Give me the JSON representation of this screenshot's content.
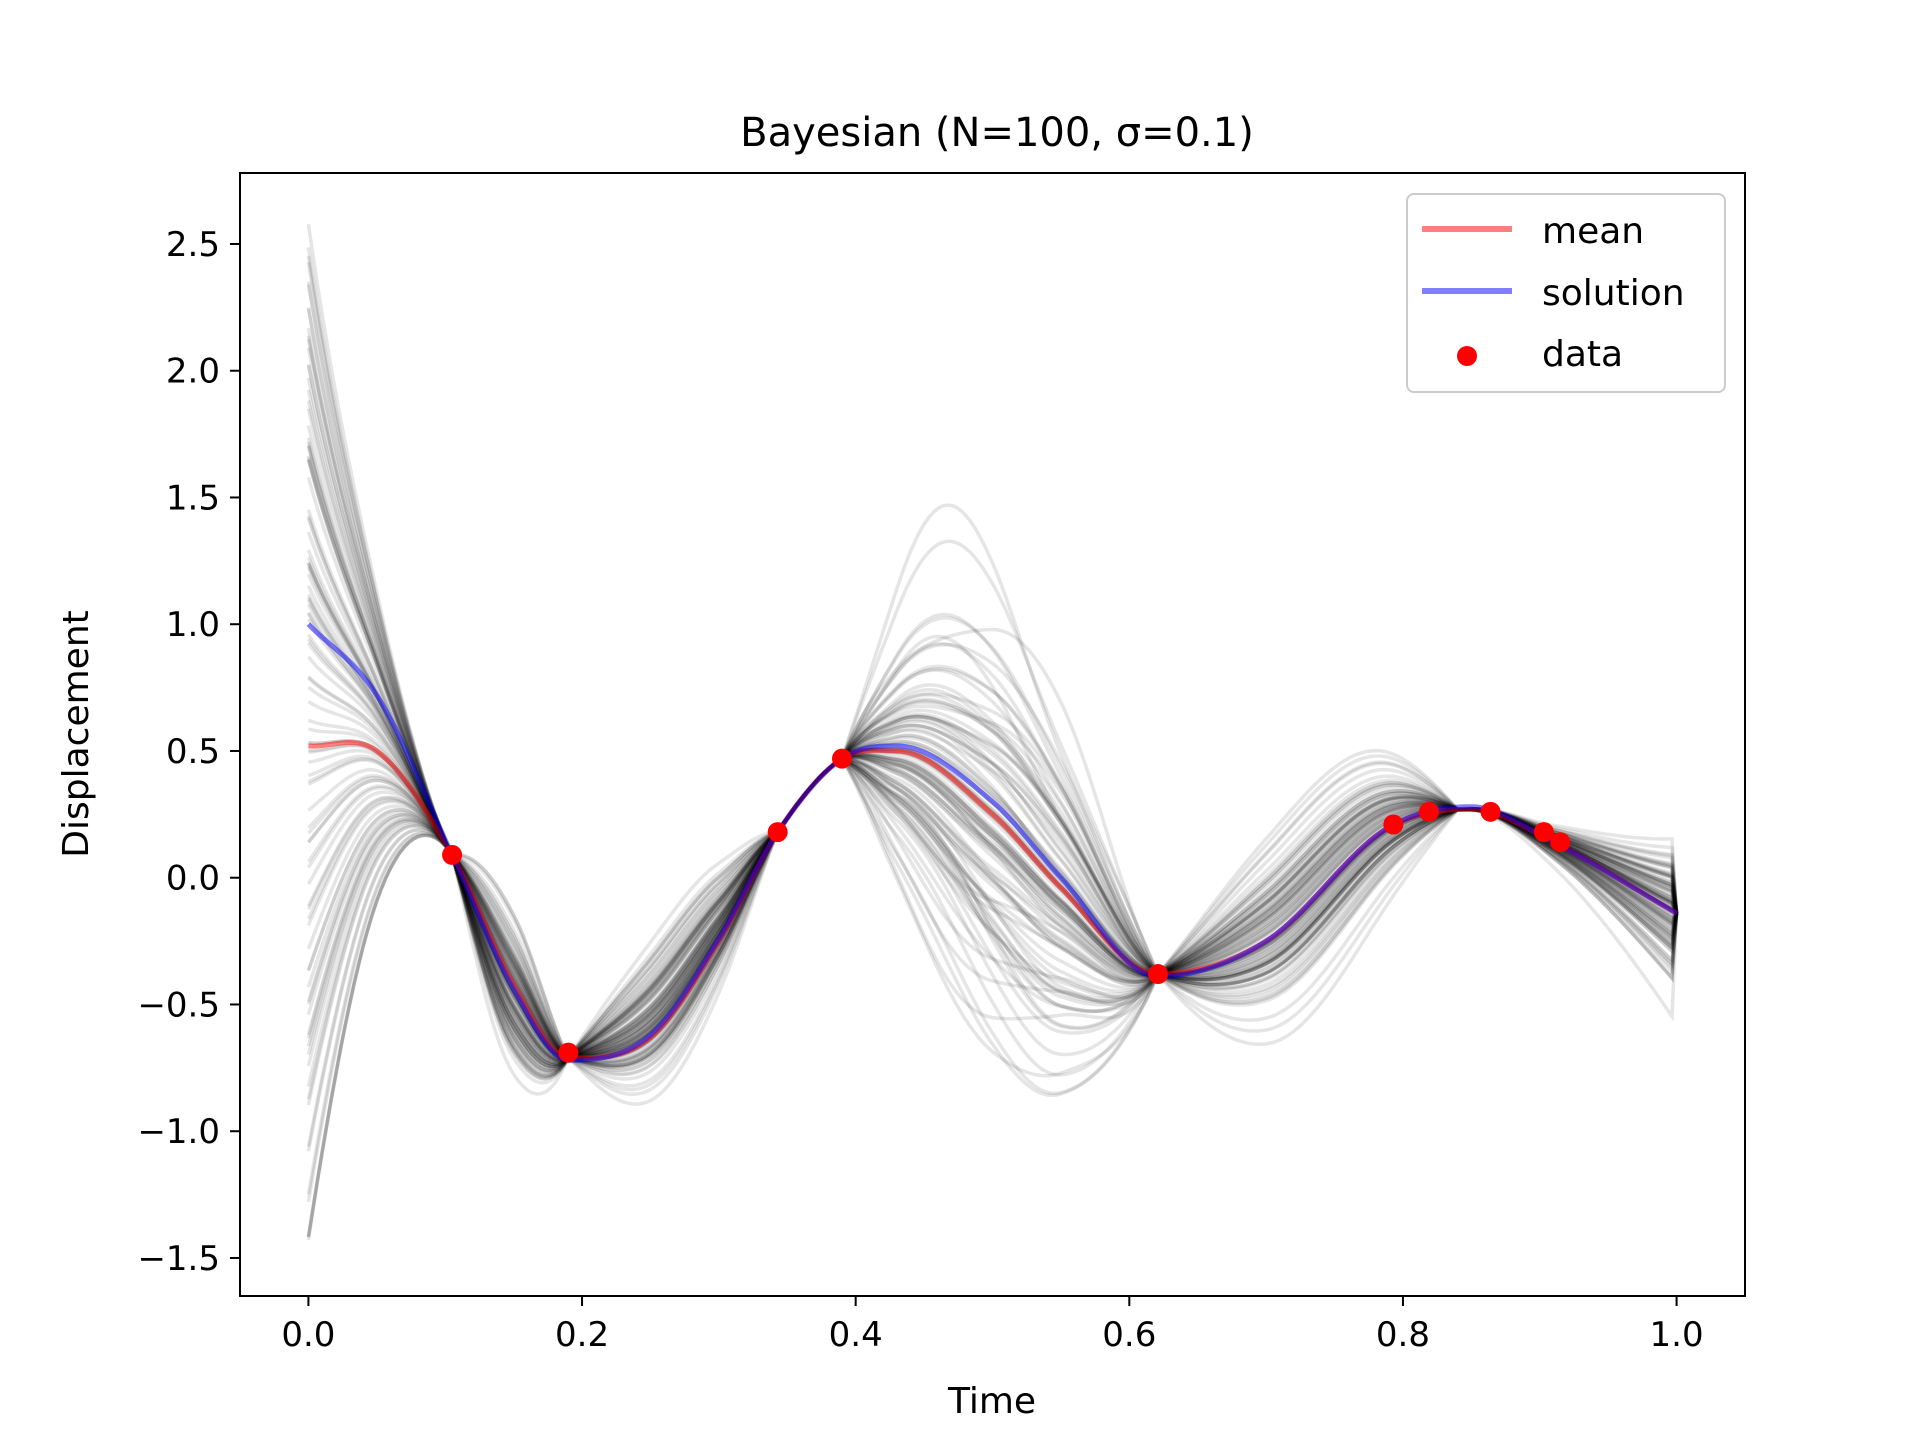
{
  "chart_data": {
    "type": "line",
    "title": "Bayesian (N=100, σ=0.1)",
    "xlabel": "Time",
    "ylabel": "Displacement",
    "xlim": [
      -0.05,
      1.05
    ],
    "ylim": [
      -1.65,
      2.78
    ],
    "x_ticks": [
      0.0,
      0.2,
      0.4,
      0.6,
      0.8,
      1.0
    ],
    "x_tick_labels": [
      "0.0",
      "0.2",
      "0.4",
      "0.6",
      "0.8",
      "1.0"
    ],
    "y_ticks": [
      -1.5,
      -1.0,
      -0.5,
      0.0,
      0.5,
      1.0,
      1.5,
      2.0,
      2.5
    ],
    "y_tick_labels": [
      "−1.5",
      "−1.0",
      "−0.5",
      "0.0",
      "0.5",
      "1.0",
      "1.5",
      "2.0",
      "2.5"
    ],
    "grid": false,
    "legend_position": "top-right",
    "series": [
      {
        "name": "mean",
        "color": "#ff0000",
        "x": [
          0.0,
          0.05,
          0.105,
          0.15,
          0.19,
          0.25,
          0.3,
          0.343,
          0.39,
          0.43,
          0.5,
          0.55,
          0.62,
          0.7,
          0.79,
          0.85,
          0.91,
          1.0
        ],
        "y": [
          0.52,
          0.5,
          0.09,
          -0.42,
          -0.71,
          -0.63,
          -0.25,
          0.18,
          0.47,
          0.5,
          0.25,
          -0.04,
          -0.38,
          -0.25,
          0.2,
          0.27,
          0.14,
          -0.14
        ]
      },
      {
        "name": "solution",
        "color": "#0000ff",
        "x": [
          0.0,
          0.05,
          0.105,
          0.15,
          0.19,
          0.25,
          0.3,
          0.343,
          0.39,
          0.43,
          0.5,
          0.55,
          0.62,
          0.7,
          0.79,
          0.85,
          0.91,
          1.0
        ],
        "y": [
          1.0,
          0.72,
          0.09,
          -0.44,
          -0.72,
          -0.62,
          -0.24,
          0.18,
          0.47,
          0.52,
          0.3,
          0.0,
          -0.39,
          -0.25,
          0.2,
          0.28,
          0.14,
          -0.14
        ]
      },
      {
        "name": "data",
        "type": "scatter",
        "color": "#ff0000",
        "x": [
          0.105,
          0.19,
          0.343,
          0.39,
          0.621,
          0.793,
          0.819,
          0.864,
          0.903,
          0.915
        ],
        "y": [
          0.09,
          -0.69,
          0.18,
          0.47,
          -0.38,
          0.21,
          0.26,
          0.26,
          0.18,
          0.14
        ]
      }
    ],
    "posterior_samples": {
      "count": 100,
      "color": "#000000",
      "y_at_x0_range": [
        -1.43,
        2.58
      ],
      "anchor_points_x": [
        0.105,
        0.19,
        0.343,
        0.39,
        0.621,
        0.84,
        1.0
      ],
      "envelope_peak_max_y": 2.17,
      "envelope_trough_min_y": -1.29
    }
  }
}
